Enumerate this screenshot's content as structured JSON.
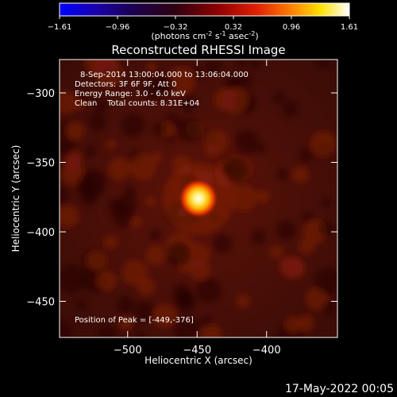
{
  "colorbar": {
    "ticks": [
      "-1.61",
      "-0.96",
      "-0.32",
      "0.32",
      "0.96",
      "1.61"
    ],
    "unit_parts": [
      "(photons cm",
      "-2",
      " s",
      "-1",
      " asec",
      "-2",
      ")"
    ]
  },
  "chart_data": {
    "type": "heatmap",
    "title": "Reconstructed RHESSI Image",
    "info_lines": [
      "8-Sep-2014 13:00:04.000 to 13:06:04.000",
      "Detectors: 3F 6F 9F, Att 0",
      "Energy Range: 3.0 - 6.0 keV",
      "Clean    Total counts: 8.31E+04"
    ],
    "peak_label": "Position of Peak = [-449,-376]",
    "peak": {
      "x": -449,
      "y": -376
    },
    "xlabel": "Heliocentric X (arcsec)",
    "ylabel": "Heliocentric Y (arcsec)",
    "xlim": [
      -549,
      -349
    ],
    "ylim": [
      -476,
      -276
    ],
    "xticks": [
      -500,
      -450,
      -400
    ],
    "xtick_labels": [
      "−500",
      "−450",
      "−400"
    ],
    "yticks": [
      -300,
      -350,
      -400,
      -450
    ],
    "ytick_labels": [
      "−300",
      "−350",
      "−400",
      "−450"
    ],
    "colormap": "rainbow-black-red-yellow-white",
    "value_range": [
      -1.61,
      1.61
    ]
  },
  "footer_date": "17-May-2022 00:05"
}
